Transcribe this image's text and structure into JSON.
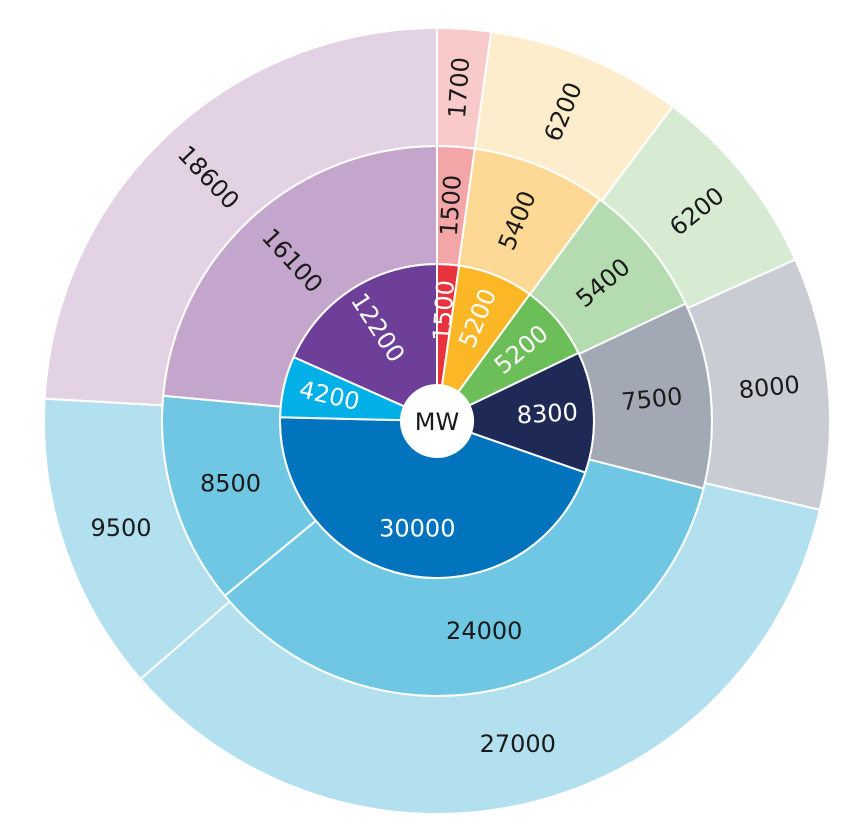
{
  "chart_data": {
    "type": "nested-donut",
    "center_label": "MW",
    "rings": [
      {
        "values": [
          1500,
          5200,
          5200,
          8300,
          30000,
          4200,
          12200
        ],
        "colors": [
          "#e8323c",
          "#fbb726",
          "#6cbe58",
          "#1e2a55",
          "#0174bd",
          "#00b0e6",
          "#6e3f98"
        ],
        "label_color": "#ffffff"
      },
      {
        "values": [
          1500,
          5400,
          5400,
          7500,
          24000,
          8500,
          16100
        ],
        "colors": [
          "#f4a5a8",
          "#fdd995",
          "#b5dcb0",
          "#a3a8b5",
          "#6fc7e3",
          "#6fc7e3",
          "#c4a5cb"
        ],
        "label_color": "#1a1a1a"
      },
      {
        "values": [
          1700,
          6200,
          6200,
          8000,
          27000,
          9500,
          18600
        ],
        "colors": [
          "#f9caca",
          "#fdedcc",
          "#d6ebd2",
          "#c9ccd3",
          "#b3e0ef",
          "#b3e0ef",
          "#e2d2e3"
        ],
        "label_color": "#1a1a1a"
      }
    ]
  }
}
